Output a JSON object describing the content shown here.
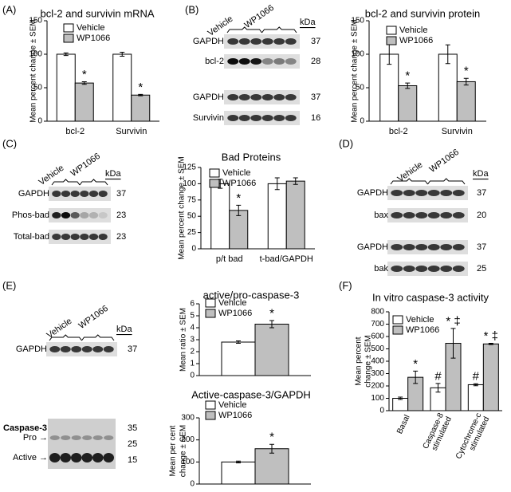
{
  "panel_labels": [
    "(A)",
    "(B)",
    "(C)",
    "(D)",
    "(E)",
    "(F)"
  ],
  "blots": [
    {
      "lanes": [
        "Vehicle",
        "WP1066"
      ],
      "unit": "kDa",
      "rows": [
        {
          "label": "GAPDH",
          "kda": 37
        },
        {
          "label": "bcl-2",
          "kda": 28
        },
        {
          "label": "GAPDH",
          "kda": 37
        },
        {
          "label": "Survivin",
          "kda": 16
        }
      ]
    },
    {
      "lanes": [
        "Vehicle",
        "WP1066"
      ],
      "unit": "kDa",
      "rows": [
        {
          "label": "GAPDH",
          "kda": 37
        },
        {
          "label": "Phos-bad",
          "kda": 23
        },
        {
          "label": "Total-bad",
          "kda": 23
        }
      ]
    },
    {
      "lanes": [
        "Vehicle",
        "WP1066"
      ],
      "unit": "kDa",
      "rows": [
        {
          "label": "GAPDH",
          "kda": 37
        },
        {
          "label": "bax",
          "kda": 20
        },
        {
          "label": "GAPDH",
          "kda": 37
        },
        {
          "label": "bak",
          "kda": 25
        }
      ]
    },
    {
      "lanes": [
        "Vehicle",
        "WP1066"
      ],
      "unit": "kDa",
      "rows": [
        {
          "label": "GAPDH",
          "kda": 37
        }
      ],
      "caspase": {
        "label": "Caspase-3",
        "bands": [
          "Pro →",
          "Active →"
        ],
        "kda": [
          35,
          25,
          15
        ]
      }
    }
  ],
  "chart_data": [
    {
      "type": "bar",
      "title": "bcl-2 and survivin mRNA",
      "y_label": [
        "Mean percent change ± SEM"
      ],
      "categories": [
        "bcl-2",
        "Survivin"
      ],
      "series": [
        {
          "name": "Vehicle",
          "color": "#ffffff",
          "values": [
            100,
            100
          ],
          "errors": [
            2,
            3
          ],
          "annotations": [
            null,
            null
          ]
        },
        {
          "name": "WP1066",
          "color": "#bfbfbf",
          "values": [
            57,
            39
          ],
          "errors": [
            2,
            1
          ],
          "annotations": [
            "*",
            "*"
          ]
        }
      ],
      "ylim": [
        0,
        150
      ],
      "yticks": [
        0,
        50,
        100,
        150
      ]
    },
    {
      "type": "bar",
      "title": "bcl-2 and survivin protein",
      "y_label": [
        "Mean percent change ± SEM"
      ],
      "categories": [
        "bcl-2",
        "Survivin"
      ],
      "series": [
        {
          "name": "Vehicle",
          "color": "#ffffff",
          "values": [
            100,
            100
          ],
          "errors": [
            15,
            14
          ],
          "annotations": [
            null,
            null
          ]
        },
        {
          "name": "WP1066",
          "color": "#bfbfbf",
          "values": [
            53,
            59
          ],
          "errors": [
            4,
            5
          ],
          "annotations": [
            "*",
            "*"
          ]
        }
      ],
      "ylim": [
        0,
        150
      ],
      "yticks": [
        0,
        50,
        100,
        150
      ]
    },
    {
      "type": "bar",
      "title": "Bad Proteins",
      "y_label": [
        "Mean percent change ± SEM"
      ],
      "categories": [
        "p/t bad",
        "t-bad/GAPDH"
      ],
      "series": [
        {
          "name": "Vehicle",
          "color": "#ffffff",
          "values": [
            100,
            100
          ],
          "errors": [
            7,
            9
          ],
          "annotations": [
            null,
            null
          ]
        },
        {
          "name": "WP1066",
          "color": "#bfbfbf",
          "values": [
            59,
            104
          ],
          "errors": [
            8,
            5
          ],
          "annotations": [
            "*",
            null
          ]
        }
      ],
      "ylim": [
        0,
        125
      ],
      "yticks": [
        0,
        25,
        50,
        75,
        100,
        125
      ]
    },
    {
      "type": "bar",
      "title": "active/pro-caspase-3",
      "y_label": [
        "Mean ratio ± SEM"
      ],
      "categories": [
        null
      ],
      "series": [
        {
          "name": "Vehicle",
          "color": "#ffffff",
          "values": [
            2.8
          ],
          "errors": [
            0.1
          ],
          "annotations": [
            null
          ]
        },
        {
          "name": "WP1066",
          "color": "#bfbfbf",
          "values": [
            4.3
          ],
          "errors": [
            0.3
          ],
          "annotations": [
            "*"
          ]
        }
      ],
      "ylim": [
        0,
        6
      ],
      "yticks": [
        0,
        1,
        2,
        3,
        4,
        5,
        6
      ]
    },
    {
      "type": "bar",
      "title": "Active-caspase-3/GAPDH",
      "y_label": [
        "Mean per cent",
        "change ± SEM"
      ],
      "categories": [
        null
      ],
      "series": [
        {
          "name": "Vehicle",
          "color": "#ffffff",
          "values": [
            100
          ],
          "errors": [
            4
          ],
          "annotations": [
            null
          ]
        },
        {
          "name": "WP1066",
          "color": "#bfbfbf",
          "values": [
            160
          ],
          "errors": [
            20
          ],
          "annotations": [
            "*"
          ]
        }
      ],
      "ylim": [
        0,
        300
      ],
      "yticks": [
        0,
        100,
        200,
        300
      ]
    },
    {
      "type": "bar",
      "title": "In vitro caspase-3 activity",
      "y_label": [
        "Mean percent",
        "change ± SEM"
      ],
      "categories": [
        "Basal",
        [
          "Caspase-8",
          "stimulated"
        ],
        [
          "Cytochrome-c",
          "stimulated"
        ]
      ],
      "series": [
        {
          "name": "Vehicle",
          "color": "#ffffff",
          "values": [
            100,
            185,
            210
          ],
          "errors": [
            10,
            35,
            8
          ],
          "annotations": [
            null,
            "#",
            "#"
          ]
        },
        {
          "name": "WP1066",
          "color": "#bfbfbf",
          "values": [
            270,
            545,
            540
          ],
          "errors": [
            50,
            120,
            5
          ],
          "annotations": [
            "*",
            "* ‡",
            "* ‡"
          ]
        }
      ],
      "ylim": [
        0,
        800
      ],
      "yticks": [
        0,
        100,
        200,
        300,
        400,
        500,
        600,
        700,
        800
      ]
    }
  ]
}
